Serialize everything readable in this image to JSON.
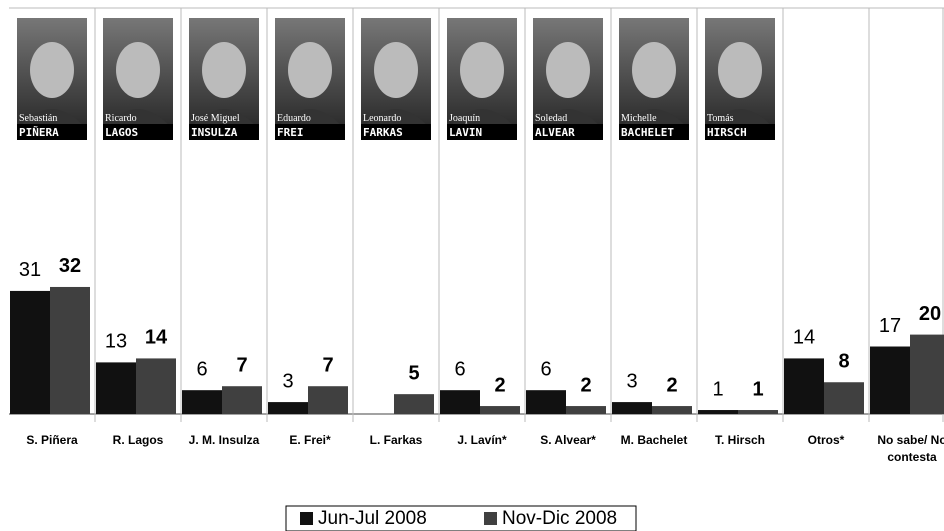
{
  "chart_data": {
    "type": "bar",
    "categories": [
      "S. Piñera",
      "R. Lagos",
      "J. M. Insulza",
      "E. Frei*",
      "L. Farkas",
      "J. Lavín*",
      "S. Alvear*",
      "M. Bachelet",
      "T. Hirsch",
      "Otros*",
      "No sabe/ No contesta"
    ],
    "photos": [
      {
        "first": "Sebastián",
        "last": "PIÑERA"
      },
      {
        "first": "Ricardo",
        "last": "LAGOS"
      },
      {
        "first": "José Miguel",
        "last": "INSULZA"
      },
      {
        "first": "Eduardo",
        "last": "FREI"
      },
      {
        "first": "Leonardo",
        "last": "FARKAS"
      },
      {
        "first": "Joaquín",
        "last": "LAVIN"
      },
      {
        "first": "Soledad",
        "last": "ALVEAR"
      },
      {
        "first": "Michelle",
        "last": "BACHELET"
      },
      {
        "first": "Tomás",
        "last": "HIRSCH"
      }
    ],
    "series": [
      {
        "name": "Jun-Jul 2008",
        "color": "#111111",
        "values": [
          31,
          13,
          6,
          3,
          null,
          6,
          6,
          3,
          1,
          14,
          17
        ]
      },
      {
        "name": "Nov-Dic 2008",
        "color": "#404040",
        "values": [
          32,
          14,
          7,
          7,
          5,
          2,
          2,
          2,
          1,
          8,
          20
        ]
      }
    ],
    "ylim": [
      0,
      100
    ]
  }
}
